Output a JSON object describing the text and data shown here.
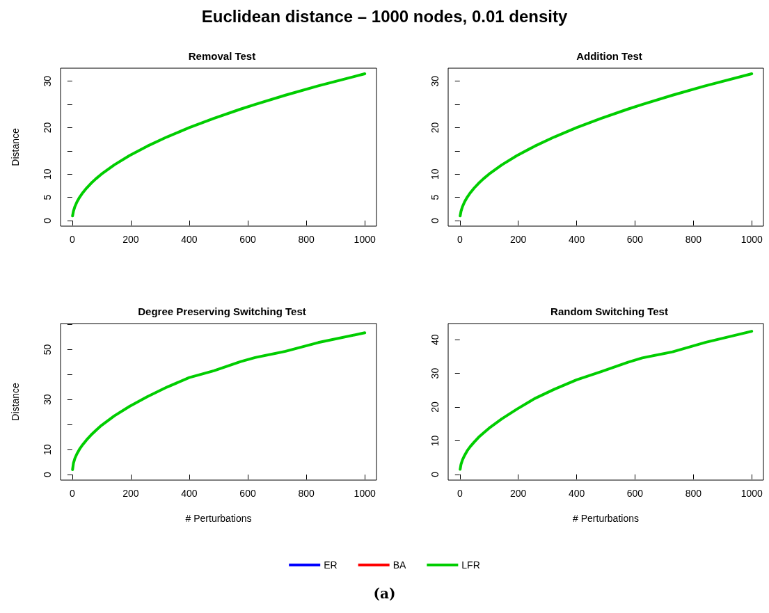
{
  "chart_data": [
    {
      "type": "line",
      "title": "Removal Test",
      "ylabel": "Distance",
      "annotations": [
        "Euclidean distance – 1000 nodes, 0.01 density"
      ],
      "x": [
        1,
        4,
        9,
        16,
        25,
        36,
        49,
        64,
        81,
        100,
        144,
        196,
        256,
        324,
        400,
        484,
        576,
        625,
        729,
        841,
        1000
      ],
      "series": [
        {
          "color": "#00cd00",
          "values": [
            1,
            2,
            3,
            4,
            5,
            6,
            7,
            8,
            9,
            10,
            12,
            14,
            16,
            18,
            20,
            22,
            24,
            25,
            27,
            29,
            31.6
          ]
        }
      ],
      "xlim": [
        -40,
        1040
      ],
      "xticks": [
        0,
        200,
        400,
        600,
        800,
        1000
      ],
      "ylim": [
        -1.2,
        32.8
      ],
      "yticks": [
        0,
        5,
        10,
        {
          "value": 15,
          "label": null
        },
        20,
        {
          "value": 25,
          "label": null
        },
        30
      ],
      "grid": false
    },
    {
      "type": "line",
      "title": "Addition Test",
      "x": [
        1,
        4,
        9,
        16,
        25,
        36,
        49,
        64,
        81,
        100,
        144,
        196,
        256,
        324,
        400,
        484,
        576,
        625,
        729,
        841,
        1000
      ],
      "series": [
        {
          "color": "#00cd00",
          "values": [
            1,
            2,
            3,
            4,
            5,
            6,
            7,
            8,
            9,
            10,
            12,
            14,
            16,
            18,
            20,
            22,
            24,
            25,
            27,
            29,
            31.6
          ]
        }
      ],
      "xlim": [
        -40,
        1040
      ],
      "xticks": [
        0,
        200,
        400,
        600,
        800,
        1000
      ],
      "ylim": [
        -1.2,
        32.8
      ],
      "yticks": [
        0,
        5,
        10,
        {
          "value": 15,
          "label": null
        },
        20,
        {
          "value": 25,
          "label": null
        },
        30
      ],
      "grid": false
    },
    {
      "type": "line",
      "title": "Degree Preserving Switching Test",
      "ylabel": "Distance",
      "xlabel": "# Perturbations",
      "x": [
        1,
        4,
        9,
        16,
        25,
        36,
        49,
        64,
        81,
        100,
        144,
        196,
        256,
        324,
        400,
        484,
        576,
        625,
        729,
        841,
        1000
      ],
      "series": [
        {
          "color": "#00cd00",
          "values": [
            2,
            4.5,
            6.5,
            8.3,
            10.2,
            12,
            13.9,
            15.8,
            17.7,
            19.7,
            23.5,
            27.3,
            31.1,
            35,
            38.8,
            41.5,
            45.2,
            46.8,
            49.3,
            52.8,
            56.7
          ]
        }
      ],
      "xlim": [
        -40,
        1040
      ],
      "xticks": [
        0,
        200,
        400,
        600,
        800,
        1000
      ],
      "ylim": [
        -2.2,
        60.4
      ],
      "yticks": [
        0,
        10,
        {
          "value": 20,
          "label": null
        },
        30,
        {
          "value": 40,
          "label": null
        },
        50,
        {
          "value": 60,
          "label": null
        }
      ],
      "grid": false
    },
    {
      "type": "line",
      "title": "Random Switching Test",
      "xlabel": "# Perturbations",
      "annotations": [
        "(a)"
      ],
      "x": [
        1,
        4,
        9,
        16,
        25,
        36,
        49,
        64,
        81,
        100,
        144,
        196,
        256,
        324,
        400,
        484,
        576,
        625,
        729,
        841,
        1000
      ],
      "series": [
        {
          "name": "ER",
          "color": "#0000ff",
          "values": [
            null,
            null,
            null,
            null,
            null,
            null,
            null,
            null,
            null,
            null,
            null,
            null,
            null,
            null,
            null,
            null,
            null,
            null,
            null,
            null,
            null
          ]
        },
        {
          "name": "BA",
          "color": "#ff0000",
          "values": [
            null,
            null,
            null,
            null,
            null,
            null,
            null,
            null,
            null,
            null,
            null,
            null,
            null,
            null,
            null,
            null,
            null,
            null,
            null,
            null,
            null
          ]
        },
        {
          "name": "LFR",
          "color": "#00cd00",
          "values": [
            1.5,
            3,
            4.3,
            5.6,
            7,
            8.3,
            9.6,
            11,
            12.3,
            13.7,
            16.5,
            19.4,
            22.5,
            25.3,
            28.1,
            30.5,
            33.3,
            34.6,
            36.4,
            39.2,
            42.5
          ]
        }
      ],
      "xlim": [
        -40,
        1040
      ],
      "xticks": [
        0,
        200,
        400,
        600,
        800,
        1000
      ],
      "ylim": [
        -1.7,
        44.8
      ],
      "yticks": [
        0,
        10,
        20,
        30,
        40
      ],
      "legend": "bottom",
      "grid": false
    }
  ]
}
